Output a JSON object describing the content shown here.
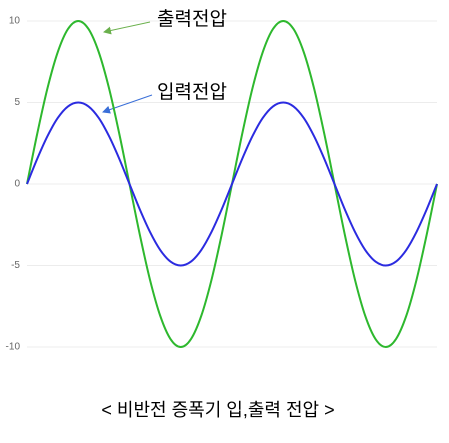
{
  "chart_data": {
    "type": "line",
    "caption": "< 비반전 증폭기 입,출력 전압 >",
    "annotations": [
      "출력전압",
      "입력전압"
    ],
    "series": [
      {
        "name": "출력전압",
        "color": "#2eb82e",
        "values": [
          0,
          3.09,
          5.88,
          8.09,
          9.51,
          10,
          9.51,
          8.09,
          5.88,
          3.09,
          0,
          -3.09,
          -5.88,
          -8.09,
          -9.51,
          -10,
          -9.51,
          -8.09,
          -5.88,
          -3.09,
          0,
          3.09,
          5.88,
          8.09,
          9.51,
          10,
          9.51,
          8.09,
          5.88,
          3.09,
          0,
          -3.09,
          -5.88,
          -8.09,
          -9.51,
          -10,
          -9.51,
          -8.09,
          -5.88,
          -3.09,
          0
        ]
      },
      {
        "name": "입력전압",
        "color": "#2b2be0",
        "values": [
          0,
          1.55,
          2.94,
          4.05,
          4.76,
          5,
          4.76,
          4.05,
          2.94,
          1.55,
          0,
          -1.55,
          -2.94,
          -4.05,
          -4.76,
          -5,
          -4.76,
          -4.05,
          -2.94,
          -1.55,
          0,
          1.55,
          2.94,
          4.05,
          4.76,
          5,
          4.76,
          4.05,
          2.94,
          1.55,
          0,
          -1.55,
          -2.94,
          -4.05,
          -4.76,
          -5,
          -4.76,
          -4.05,
          -2.94,
          -1.55,
          0
        ]
      }
    ],
    "ylim": [
      -10,
      10
    ],
    "yticks": [
      -10,
      -5,
      0,
      5,
      10
    ],
    "grid": true
  }
}
